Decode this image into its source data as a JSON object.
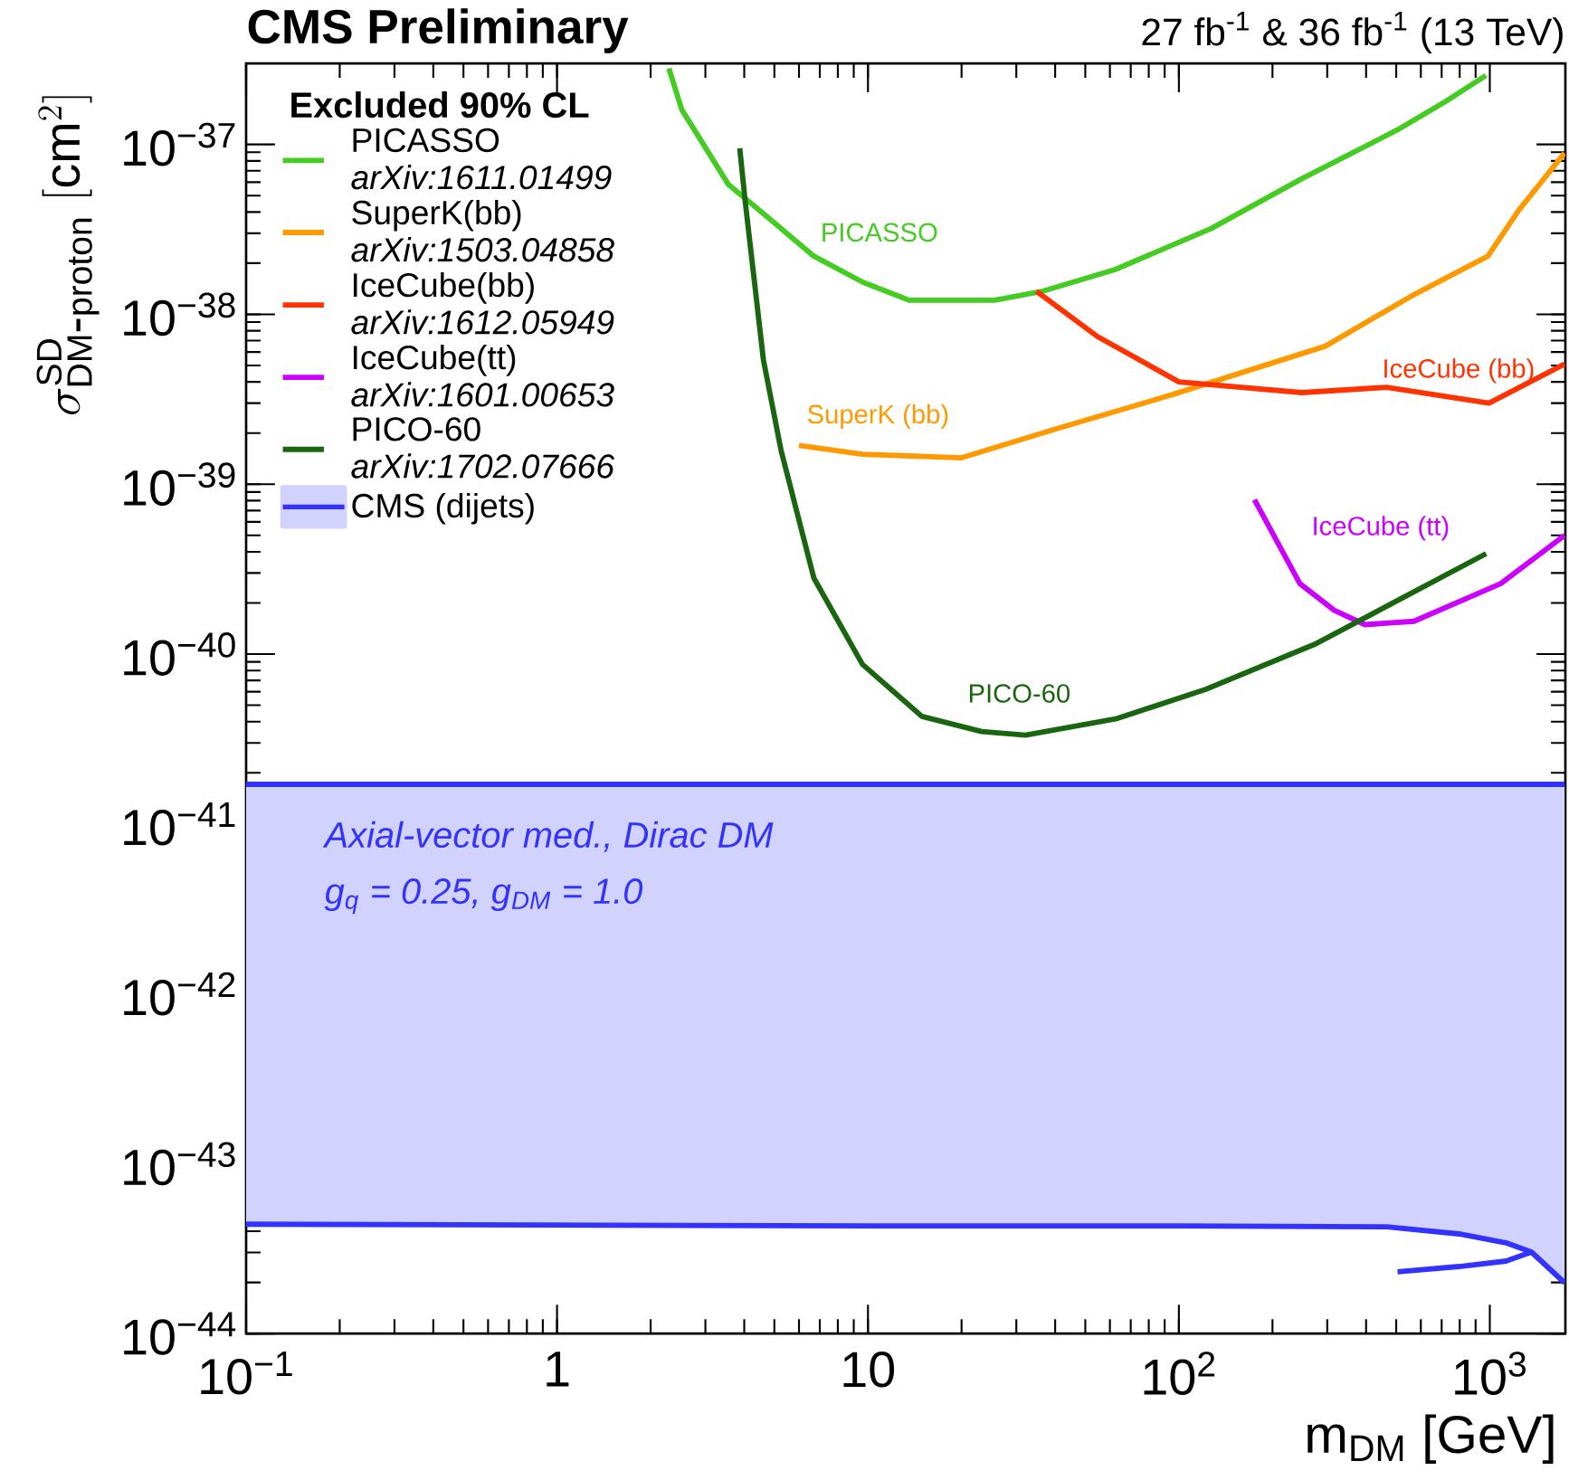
{
  "chart_data": {
    "type": "line",
    "title": "CMS Preliminary",
    "subtitle": "27 fb$^{-1}$ & 36 fb$^{-1}$ (13 TeV)",
    "xlabel": "m$_{DM}$ [GeV]",
    "ylabel": "\\sigma^{\\mathrm{SD}}_{\\mathrm{DM\\mbox{-}proton}}\\ [\\mathrm{cm}^{2}]",
    "legend_title": "Excluded 90% CL",
    "log": "xy",
    "legend": "top left",
    "xlim": [
      0.1,
      1750
    ],
    "ylim": [
      1e-44,
      3e-37
    ],
    "xticks": [
      {
        "value": 0.1,
        "label": "10$^{−1}$"
      },
      1,
      10,
      {
        "value": 100,
        "label": "10$^{2}$"
      },
      {
        "value": 1000,
        "label": "10$^{3}$"
      }
    ],
    "yticks": [
      {
        "value": 1e-44,
        "label": "10$^{−44}$"
      },
      {
        "value": 1e-43,
        "label": "10$^{−43}$"
      },
      {
        "value": 1e-42,
        "label": "10$^{−42}$"
      },
      {
        "value": 1e-41,
        "label": "10$^{−41}$"
      },
      {
        "value": 1e-40,
        "label": "10$^{−40}$"
      },
      {
        "value": 1e-39,
        "label": "10$^{−39}$"
      },
      {
        "value": 1e-38,
        "label": "10$^{−38}$"
      },
      {
        "value": 1e-37,
        "label": "10$^{−37}$"
      }
    ],
    "series": [
      {
        "name": "PICASSO",
        "color": "#44cc22",
        "x": [
          2.29,
          2.52,
          3.56,
          4.66,
          6.7,
          9.6,
          13.6,
          25.5,
          36.6,
          62.6,
          127,
          249,
          505,
          724,
          972
        ],
        "values": [
          2.8e-37,
          1.6e-37,
          5.8e-38,
          3.85e-38,
          2.2e-38,
          1.55e-38,
          1.21e-38,
          1.21e-38,
          1.37e-38,
          1.84e-38,
          3.2e-38,
          6.3e-38,
          1.22e-37,
          1.8e-37,
          2.55e-37
        ]
      },
      {
        "name": "SuperK(bb)",
        "color": "#ff9900",
        "x": [
          6.0,
          9.6,
          20,
          39.7,
          97,
          296,
          555,
          986,
          1239,
          1740
        ],
        "values": [
          1.69e-39,
          1.5e-39,
          1.43e-39,
          2.1e-39,
          3.4e-39,
          6.5e-39,
          1.27e-38,
          2.2e-38,
          4.1e-38,
          8.9e-38
        ]
      },
      {
        "name": "IceCube(bb)",
        "color": "#ff3300",
        "x": [
          34.8,
          54.7,
          100,
          249,
          466,
          994,
          1740
        ],
        "values": [
          1.37e-38,
          7.4e-39,
          4e-39,
          3.46e-39,
          3.72e-39,
          3e-39,
          5.1e-39
        ]
      },
      {
        "name": "IceCube(tt)",
        "color": "#cc00ff",
        "x": [
          175,
          245,
          316,
          397,
          570,
          1084,
          1740
        ],
        "values": [
          8.1e-40,
          2.6e-40,
          1.81e-40,
          1.49e-40,
          1.56e-40,
          2.6e-40,
          5e-40
        ]
      },
      {
        "name": "PICO-60",
        "color": "#1a6610",
        "x": [
          3.87,
          4.03,
          4.61,
          5.26,
          6.7,
          9.6,
          14.9,
          23.2,
          32.1,
          62.6,
          122,
          273,
          973
        ],
        "values": [
          9.5e-38,
          4.6e-38,
          5.4e-39,
          1.57e-39,
          2.8e-40,
          8.7e-41,
          4.3e-41,
          3.5e-41,
          3.33e-41,
          4.15e-41,
          6.2e-41,
          1.14e-40,
          3.9e-40
        ]
      },
      {
        "name": "CMS (dijets)",
        "type": "area",
        "color": "#3333ff",
        "x": [
          0.1,
          1,
          10,
          100,
          466,
          796,
          1127,
          1361,
          1740
        ],
        "values": [
          1.71e-41,
          1.71e-41,
          1.71e-41,
          1.71e-41,
          1.71e-41,
          1.71e-41,
          1.71e-41,
          1.71e-41,
          1.71e-41
        ]
      },
      {
        "type": "line",
        "color": "#3333ff",
        "x": [
          0.1,
          1,
          10,
          100,
          466,
          796,
          1127,
          1361,
          1740
        ],
        "values": [
          4.4e-44,
          4.35e-44,
          4.3e-44,
          4.3e-44,
          4.25e-44,
          3.86e-44,
          3.42e-44,
          3.02e-44,
          1.99e-44
        ]
      },
      {
        "type": "line",
        "color": "#3333ff",
        "x": [
          1361,
          1127,
          796,
          505
        ],
        "values": [
          3.02e-44,
          2.67e-44,
          2.48e-44,
          2.31e-44
        ]
      }
    ],
    "annotations": [
      "arXiv:1611.01499",
      "arXiv:1503.04858",
      "arXiv:1612.05949",
      "arXiv:1601.00653",
      "arXiv:1702.07666",
      "Axial-vector med., Dirac DM",
      "g$_{q}$ = 0.25, g$_{DM}$ = 1.0",
      "PICASSO",
      "SuperK (bb)",
      "IceCube (bb)",
      "IceCube (tt)",
      "PICO-60"
    ]
  }
}
